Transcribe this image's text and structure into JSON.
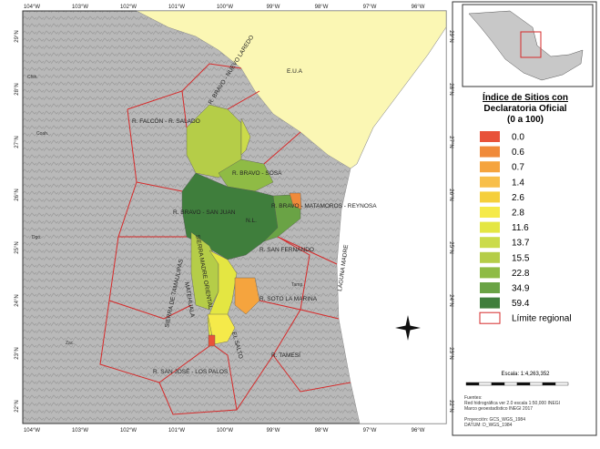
{
  "map": {
    "lon_labels": [
      "104°W",
      "103°W",
      "102°W",
      "101°W",
      "100°W",
      "99°W",
      "98°W",
      "97°W",
      "96°W"
    ],
    "lat_labels": [
      "29°N",
      "28°N",
      "27°N",
      "26°N",
      "25°N",
      "24°N",
      "23°N",
      "22°N"
    ],
    "region_labels": [
      "E.U.A",
      "R. BRAVO - NUEVO LAREDO",
      "R. FALCÓN - R. SALADO",
      "R. BRAVO - SOSA",
      "R. BRAVO - SAN JUAN",
      "N.L.",
      "R. BRAVO - MATAMOROS - REYNOSA",
      "R. SAN FERNANDO",
      "LAGUNA MADRE",
      "SIERRA MADRE ORIENTAL",
      "SIERRA DE TAMAULIPAS",
      "MATEHUALA",
      "R. SOTO LA MARINA",
      "R. TAMESÍ",
      "R. SAN JOSÉ - LOS PALOS",
      "EL SALTO",
      "Tamp.",
      "Coah.",
      "Chih.",
      "Dgo.",
      "Zac."
    ]
  },
  "legend": {
    "title": [
      "Índice de Sitios con",
      "Declaratoria Oficial",
      "(0 a 100)"
    ],
    "items": [
      {
        "label": "0.0",
        "color": "#e8523a"
      },
      {
        "label": "0.6",
        "color": "#f08a3a"
      },
      {
        "label": "0.7",
        "color": "#f5a43e"
      },
      {
        "label": "1.4",
        "color": "#f8bf4a"
      },
      {
        "label": "2.6",
        "color": "#f5cf3c"
      },
      {
        "label": "2.8",
        "color": "#f5ea4a"
      },
      {
        "label": "11.6",
        "color": "#e4e642"
      },
      {
        "label": "13.7",
        "color": "#cbdb4a"
      },
      {
        "label": "15.5",
        "color": "#b5cd48"
      },
      {
        "label": "22.8",
        "color": "#8fbb45"
      },
      {
        "label": "34.9",
        "color": "#6aa345"
      },
      {
        "label": "59.4",
        "color": "#3f7e3c"
      }
    ],
    "boundary": "Límite regional",
    "scale": "Escala: 1:4,263,352",
    "sources": [
      "Fuentes:",
      "Red hidrográfica ver 2.0 escala 1:50,000 INEGI",
      "Marco geoestadístico INEGI 2017",
      "Proyección: GCS_WGS_1984",
      "DATUM: D_WGS_1984"
    ]
  }
}
